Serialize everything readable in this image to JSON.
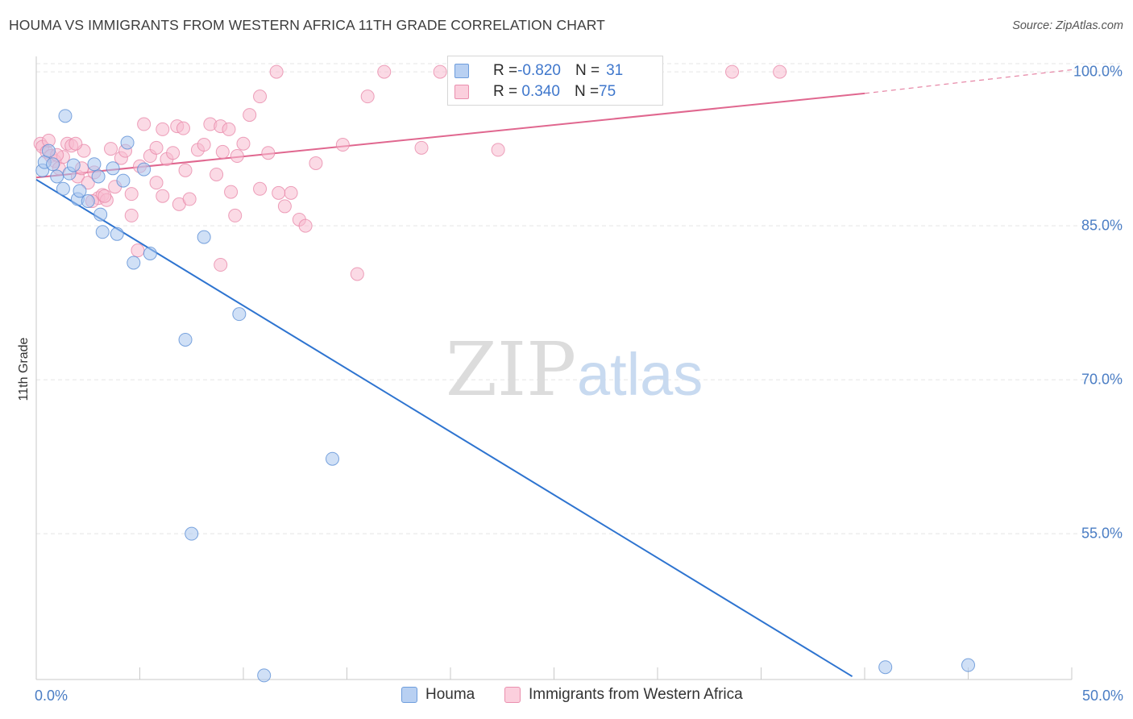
{
  "header": {
    "title": "HOUMA VS IMMIGRANTS FROM WESTERN AFRICA 11TH GRADE CORRELATION CHART",
    "source": "Source: ZipAtlas.com"
  },
  "watermark": {
    "part1": "ZIP",
    "part2": "atlas"
  },
  "stats": [
    {
      "r_label": "R = ",
      "r_value": "-0.820",
      "n_label": "N = ",
      "n_value": "31",
      "color": "#a9c6ee"
    },
    {
      "r_label": "R = ",
      "r_value": " 0.340",
      "n_label": "N = ",
      "n_value": "75",
      "color": "#f7bcd0"
    }
  ],
  "legend": [
    {
      "label": "Houma",
      "color": "#a9c6ee"
    },
    {
      "label": "Immigrants from Western Africa",
      "color": "#f7bcd0"
    }
  ],
  "colors": {
    "houma_fill": "#a9c6ee",
    "houma_stroke": "#5b8fd6",
    "houma_line": "#2e74d0",
    "wa_fill": "#f7bcd0",
    "wa_stroke": "#e98aaa",
    "wa_line": "#e0678f",
    "grid": "#e5e5e5",
    "tick_label": "#4a7dc4"
  },
  "chart_data": {
    "type": "scatter",
    "title": "HOUMA VS IMMIGRANTS FROM WESTERN AFRICA 11TH GRADE CORRELATION CHART",
    "xlabel": "",
    "ylabel": "11th Grade",
    "xlim": [
      0,
      50
    ],
    "ylim": [
      40.8,
      101.5
    ],
    "x_tick_labels": [
      {
        "value": 0,
        "label": "0.0%"
      },
      {
        "value": 50,
        "label": "50.0%"
      }
    ],
    "x_minor_ticks": [
      5,
      10,
      15,
      20,
      25,
      30,
      35,
      40,
      45
    ],
    "y_ticks": [
      {
        "value": 100,
        "label": "100.0%"
      },
      {
        "value": 85,
        "label": "85.0%"
      },
      {
        "value": 70,
        "label": "70.0%"
      },
      {
        "value": 55,
        "label": "55.0%"
      }
    ],
    "grid": true,
    "legend_position": "bottom-center",
    "series": [
      {
        "name": "Houma",
        "r": -0.82,
        "n": 31,
        "trend": {
          "x": [
            0,
            39.4
          ],
          "y": [
            89.5,
            41.1
          ]
        },
        "points": [
          [
            0.3,
            90.4
          ],
          [
            0.4,
            91.2
          ],
          [
            0.6,
            92.3
          ],
          [
            0.8,
            91.0
          ],
          [
            1.0,
            89.8
          ],
          [
            1.3,
            88.6
          ],
          [
            1.4,
            95.7
          ],
          [
            1.6,
            90.1
          ],
          [
            1.8,
            90.9
          ],
          [
            2.0,
            87.6
          ],
          [
            2.1,
            88.4
          ],
          [
            2.5,
            87.4
          ],
          [
            2.8,
            91.0
          ],
          [
            3.1,
            86.1
          ],
          [
            3.2,
            84.4
          ],
          [
            3.7,
            90.6
          ],
          [
            4.2,
            89.4
          ],
          [
            4.4,
            93.1
          ],
          [
            5.2,
            90.5
          ],
          [
            3.9,
            84.2
          ],
          [
            4.7,
            81.4
          ],
          [
            5.5,
            82.3
          ],
          [
            7.2,
            73.9
          ],
          [
            8.1,
            83.9
          ],
          [
            9.8,
            76.4
          ],
          [
            14.3,
            62.3
          ],
          [
            7.5,
            55.0
          ],
          [
            11.0,
            41.2
          ],
          [
            41.0,
            42.0
          ],
          [
            45.0,
            42.2
          ],
          [
            3.0,
            89.8
          ]
        ]
      },
      {
        "name": "Immigrants from Western Africa",
        "r": 0.34,
        "n": 75,
        "trend": {
          "x": [
            0,
            40
          ],
          "y": [
            89.7,
            97.9
          ]
        },
        "trend_dashed": {
          "x": [
            40,
            50
          ],
          "y": [
            97.9,
            100.2
          ]
        },
        "points": [
          [
            0.2,
            93.0
          ],
          [
            0.3,
            92.7
          ],
          [
            0.5,
            92.2
          ],
          [
            0.7,
            91.8
          ],
          [
            0.9,
            91.3
          ],
          [
            1.1,
            90.6
          ],
          [
            1.3,
            91.7
          ],
          [
            1.5,
            93.0
          ],
          [
            1.7,
            92.8
          ],
          [
            2.0,
            89.8
          ],
          [
            2.2,
            90.6
          ],
          [
            2.3,
            92.3
          ],
          [
            2.5,
            89.2
          ],
          [
            2.8,
            90.2
          ],
          [
            3.0,
            87.7
          ],
          [
            3.2,
            88.0
          ],
          [
            3.4,
            87.5
          ],
          [
            3.6,
            92.5
          ],
          [
            3.8,
            88.8
          ],
          [
            4.1,
            91.6
          ],
          [
            4.3,
            92.3
          ],
          [
            4.6,
            88.1
          ],
          [
            5.0,
            90.8
          ],
          [
            5.2,
            94.9
          ],
          [
            5.5,
            91.8
          ],
          [
            5.8,
            92.6
          ],
          [
            6.1,
            94.4
          ],
          [
            6.3,
            91.5
          ],
          [
            6.6,
            92.1
          ],
          [
            6.9,
            87.1
          ],
          [
            7.2,
            90.4
          ],
          [
            7.4,
            87.6
          ],
          [
            7.8,
            92.4
          ],
          [
            8.1,
            92.9
          ],
          [
            8.4,
            94.9
          ],
          [
            8.7,
            90.0
          ],
          [
            9.0,
            92.2
          ],
          [
            9.4,
            88.3
          ],
          [
            9.7,
            91.8
          ],
          [
            10.0,
            93.0
          ],
          [
            10.3,
            95.8
          ],
          [
            10.8,
            97.6
          ],
          [
            11.2,
            92.1
          ],
          [
            11.6,
            100.0
          ],
          [
            12.0,
            86.9
          ],
          [
            12.3,
            88.2
          ],
          [
            12.7,
            85.6
          ],
          [
            13.0,
            85.0
          ],
          [
            13.5,
            91.1
          ],
          [
            14.8,
            92.9
          ],
          [
            15.5,
            80.3
          ],
          [
            16.0,
            97.6
          ],
          [
            16.8,
            100.0
          ],
          [
            18.6,
            92.6
          ],
          [
            19.5,
            100.0
          ],
          [
            22.3,
            92.4
          ],
          [
            33.6,
            100.0
          ],
          [
            35.9,
            100.0
          ],
          [
            4.6,
            86.0
          ],
          [
            4.9,
            82.6
          ],
          [
            6.1,
            87.9
          ],
          [
            8.9,
            81.2
          ],
          [
            9.6,
            86.0
          ],
          [
            10.8,
            88.6
          ],
          [
            11.7,
            88.2
          ],
          [
            1.9,
            93.0
          ],
          [
            2.7,
            87.4
          ],
          [
            5.8,
            89.2
          ],
          [
            6.8,
            94.7
          ],
          [
            7.1,
            94.5
          ],
          [
            8.9,
            94.7
          ],
          [
            9.3,
            94.4
          ],
          [
            0.6,
            93.3
          ],
          [
            1.0,
            91.9
          ],
          [
            3.3,
            87.9
          ]
        ]
      }
    ]
  }
}
